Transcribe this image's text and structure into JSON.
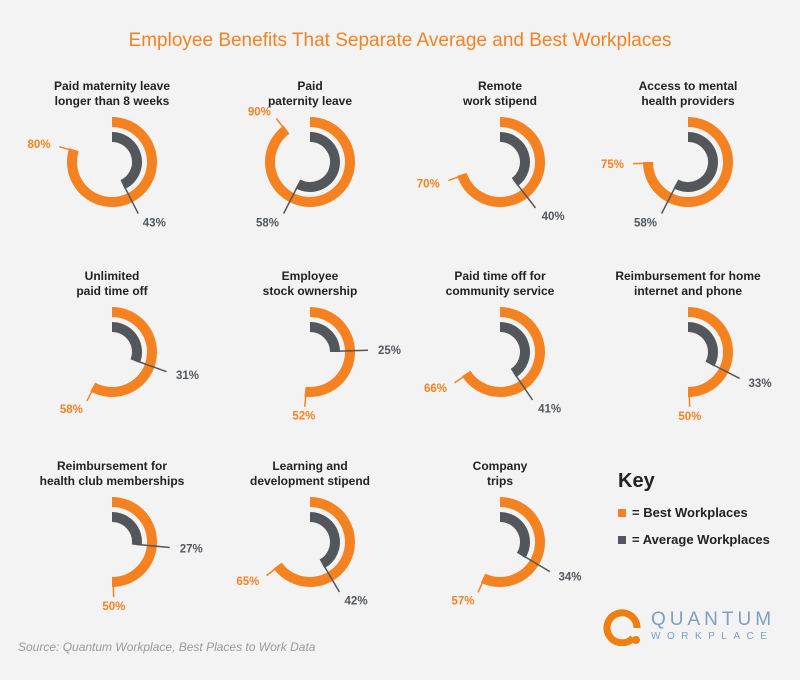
{
  "title": "Employee Benefits That Separate Average and Best Workplaces",
  "chart_data": {
    "type": "radial-bar",
    "title": "Employee Benefits That Separate Average and Best Workplaces",
    "unit": "%",
    "colors": {
      "best": "#f58220",
      "average": "#53575c"
    },
    "series": [
      {
        "name": "Best Workplaces"
      },
      {
        "name": "Average Workplaces"
      }
    ],
    "items": [
      {
        "label": [
          "Paid maternity leave",
          "longer than 8 weeks"
        ],
        "best": 80,
        "average": 43
      },
      {
        "label": [
          "Paid",
          "paternity leave"
        ],
        "best": 90,
        "average": 58
      },
      {
        "label": [
          "Remote",
          "work stipend"
        ],
        "best": 70,
        "average": 40
      },
      {
        "label": [
          "Access to mental",
          "health providers"
        ],
        "best": 75,
        "average": 58
      },
      {
        "label": [
          "Unlimited",
          "paid time off"
        ],
        "best": 58,
        "average": 31
      },
      {
        "label": [
          "Employee",
          "stock ownership"
        ],
        "best": 52,
        "average": 25
      },
      {
        "label": [
          "Paid time off for",
          "community service"
        ],
        "best": 66,
        "average": 41
      },
      {
        "label": [
          "Reimbursement for home",
          "internet and phone"
        ],
        "best": 50,
        "average": 33
      },
      {
        "label": [
          "Reimbursement for",
          "health club memberships"
        ],
        "best": 50,
        "average": 27
      },
      {
        "label": [
          "Learning and",
          "development stipend"
        ],
        "best": 65,
        "average": 42
      },
      {
        "label": [
          "Company",
          "trips"
        ],
        "best": 57,
        "average": 34
      }
    ]
  },
  "key": {
    "title": "Key",
    "best": "= Best Workplaces",
    "average": "= Average Workplaces"
  },
  "source": "Source: Quantum Workplace, Best Places to Work Data",
  "logo": {
    "line1": "QUANTUM",
    "line2": "WORKPLACE"
  }
}
